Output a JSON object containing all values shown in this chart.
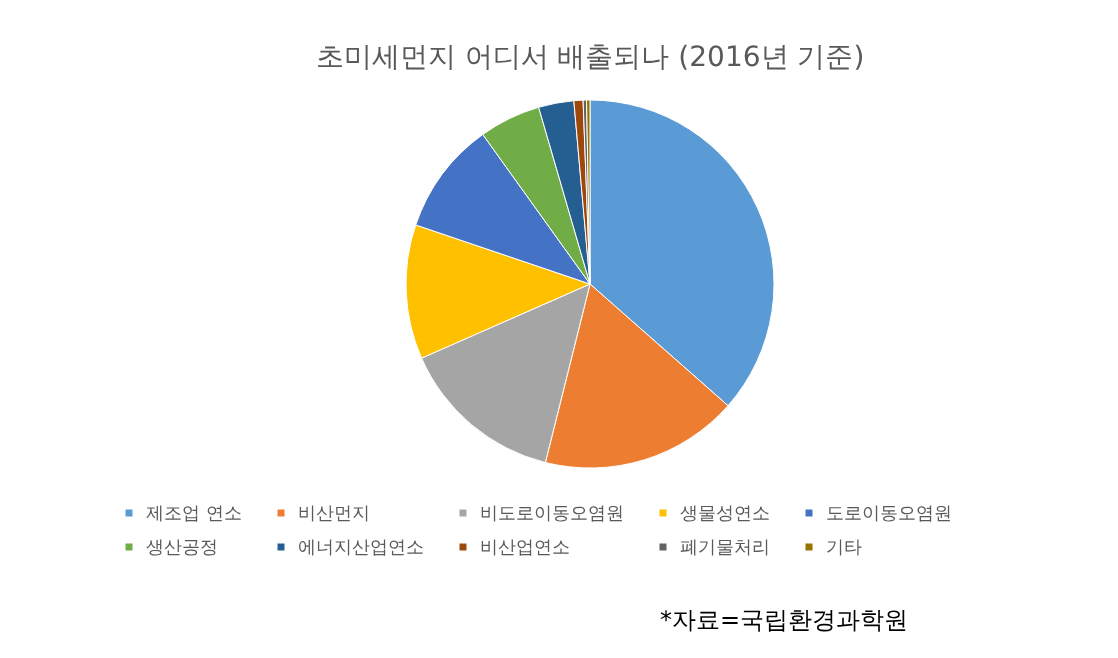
{
  "chart_data": {
    "type": "pie",
    "title": "초미세먼지 어디서 배출되나 (2016년 기준)",
    "categories": [
      "제조업 연소",
      "비산먼지",
      "비도로이동오염원",
      "생물성연소",
      "도로이동오염원",
      "생산공정",
      "에너지산업연소",
      "비산업연소",
      "폐기물처리",
      "기타"
    ],
    "values": [
      36.5,
      17.4,
      14.5,
      11.8,
      9.9,
      5.4,
      3.1,
      0.8,
      0.3,
      0.3
    ],
    "colors": [
      "#5b9bd5",
      "#ed7d31",
      "#a5a5a5",
      "#ffc000",
      "#4472c4",
      "#70ad47",
      "#255e91",
      "#9e480e",
      "#636363",
      "#997300"
    ],
    "legend": "bottom",
    "annotations": [
      "*자료=국립환경과학원"
    ]
  }
}
